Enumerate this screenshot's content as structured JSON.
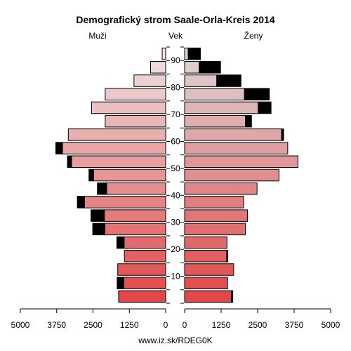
{
  "chart_data": {
    "type": "bar",
    "title": "Demografický strom Saale-Orla-Kreis 2014",
    "left_label": "Muži",
    "center_label": "Vek",
    "right_label": "Ženy",
    "footer": "www.iz.sk/RDEG0K",
    "age_ticks": [
      10,
      20,
      30,
      40,
      50,
      60,
      70,
      80,
      90
    ],
    "x_ticks": [
      5000,
      3750,
      2500,
      1250,
      0
    ],
    "x_ticks_right": [
      0,
      1250,
      2500,
      3750,
      5000
    ],
    "xlim": [
      0,
      5000
    ],
    "series": [
      {
        "name": "Muži",
        "age_groups": [
          "0-4",
          "5-9",
          "10-14",
          "15-19",
          "20-24",
          "25-29",
          "30-34",
          "35-39",
          "40-44",
          "45-49",
          "50-54",
          "55-59",
          "60-64",
          "65-69",
          "70-74",
          "75-79",
          "80-84",
          "85-89",
          "90+"
        ],
        "values": [
          1620,
          1440,
          1650,
          1420,
          1430,
          2090,
          2110,
          2790,
          2030,
          2480,
          3240,
          3550,
          3350,
          2080,
          2550,
          2080,
          1090,
          520,
          120
        ],
        "excess": [
          0,
          230,
          0,
          0,
          250,
          420,
          460,
          250,
          320,
          160,
          140,
          230,
          0,
          0,
          0,
          0,
          0,
          0,
          0
        ]
      },
      {
        "name": "Ženy",
        "age_groups": [
          "0-4",
          "5-9",
          "10-14",
          "15-19",
          "20-24",
          "25-29",
          "30-34",
          "35-39",
          "40-44",
          "45-49",
          "50-54",
          "55-59",
          "60-64",
          "65-69",
          "70-74",
          "75-79",
          "80-84",
          "85-89",
          "90+"
        ],
        "values": [
          1600,
          1470,
          1680,
          1440,
          1450,
          2080,
          2150,
          2020,
          2480,
          3230,
          3880,
          3530,
          3320,
          2080,
          2520,
          2050,
          1100,
          500,
          120
        ],
        "excess": [
          50,
          0,
          0,
          40,
          0,
          0,
          0,
          0,
          0,
          0,
          0,
          0,
          70,
          210,
          440,
          850,
          830,
          730,
          420
        ]
      }
    ]
  }
}
